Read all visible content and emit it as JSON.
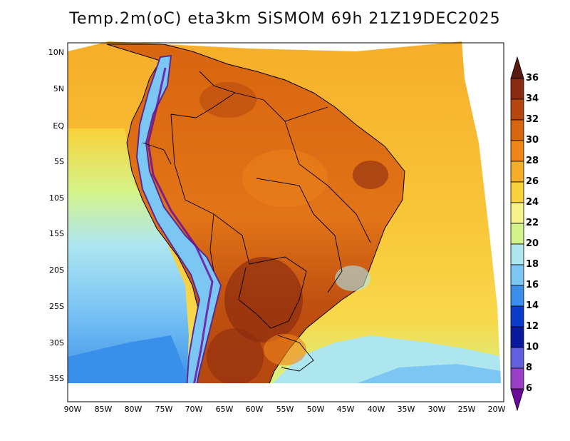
{
  "title": "Temp.2m(oC) eta3km SiSMOM 69h 21Z19DEC2025",
  "y_axis_labels": [
    "10N",
    "5N",
    "EQ",
    "5S",
    "10S",
    "15S",
    "20S",
    "25S",
    "30S",
    "35S"
  ],
  "x_axis_labels": [
    "90W",
    "85W",
    "80W",
    "75W",
    "70W",
    "65W",
    "60W",
    "55W",
    "50W",
    "45W",
    "40W",
    "35W",
    "30W",
    "25W",
    "20W"
  ],
  "colorbar": {
    "labels": [
      "36",
      "34",
      "32",
      "30",
      "28",
      "26",
      "24",
      "22",
      "20",
      "18",
      "16",
      "14",
      "12",
      "10",
      "8",
      "6"
    ],
    "colors": [
      "#5a1a10",
      "#8a2a10",
      "#b4470f",
      "#d8650f",
      "#f0861a",
      "#f6ad2a",
      "#f8d23a",
      "#f8f28a",
      "#d4f48a",
      "#aee6f0",
      "#7cc6f4",
      "#3a90e8",
      "#0a3cc8",
      "#0a1a9e",
      "#6060e0",
      "#9a40c8",
      "#6a0a9a"
    ]
  },
  "colors": {
    "ocean_north": "#f8b033",
    "ocean_mid": "#f8d23a",
    "ocean_south": "#7cc6f4",
    "land_hot": "#d8650f",
    "land_warm": "#f0861a",
    "andes": "#7cc6f4"
  }
}
